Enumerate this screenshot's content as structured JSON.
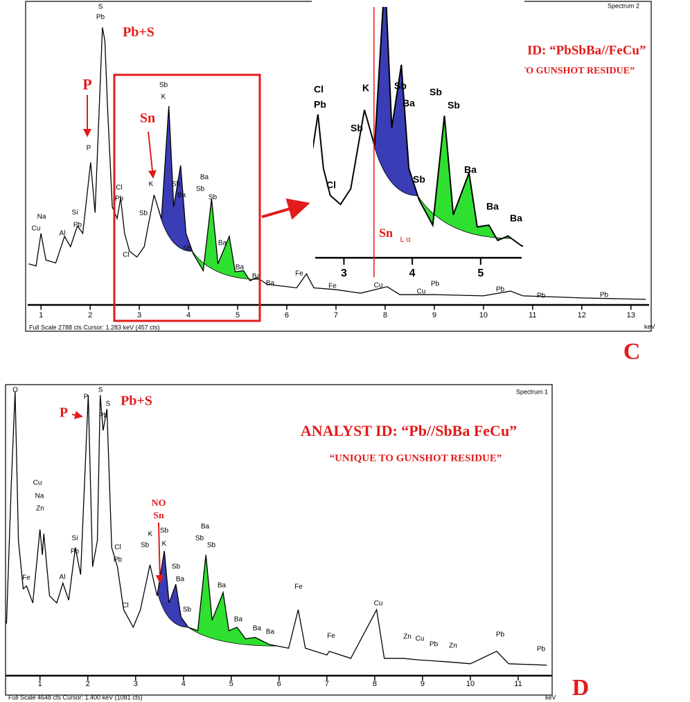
{
  "chart_data": [
    {
      "type": "line",
      "panel": "C",
      "spectrum_name": "Spectrum 2",
      "status_text": "Full Scale 2788 cts  Cursor: 1.283 keV (457 cts)",
      "x_unit": "keV",
      "x": [
        0.75,
        0.9,
        1.0,
        1.1,
        1.3,
        1.48,
        1.6,
        1.74,
        1.85,
        2.01,
        2.1,
        2.25,
        2.3,
        2.35,
        2.45,
        2.55,
        2.62,
        2.7,
        2.8,
        2.95,
        3.1,
        3.3,
        3.45,
        3.6,
        3.7,
        3.84,
        3.95,
        4.1,
        4.3,
        4.47,
        4.6,
        4.83,
        4.95,
        5.12,
        5.25,
        5.4,
        5.6,
        6.0,
        6.2,
        6.4,
        6.55,
        7.0,
        7.5,
        8.04,
        8.3,
        9.0,
        10.0,
        10.55,
        10.8,
        12.0,
        13.3
      ],
      "series": [
        {
          "color": "#000000",
          "values": [
            12.7,
            12,
            23,
            14,
            13,
            22,
            18.5,
            25.5,
            23,
            47,
            30,
            92.6,
            88,
            67,
            32,
            28,
            35,
            23,
            17,
            15,
            18.5,
            36,
            28,
            66,
            32,
            46,
            23,
            16,
            10.4,
            34.7,
            12.7,
            22,
            10,
            10.4,
            7,
            8,
            5.8,
            5,
            4.6,
            9.3,
            4.6,
            4,
            2.8,
            5,
            2.3,
            2.3,
            1.9,
            3.5,
            1.9,
            1.2,
            0.7
          ]
        }
      ],
      "xlim": [
        0.73,
        13.37
      ],
      "xticks": [
        1,
        2,
        3,
        4,
        5,
        6,
        7,
        8,
        9,
        10,
        11,
        12,
        13
      ],
      "ylim": [
        0,
        100
      ],
      "peak_labels": [
        "Na",
        "Cu",
        "Al",
        "Si",
        "Pb",
        "P",
        "S",
        "Pb",
        "Cl",
        "Pb",
        "K",
        "Sb",
        "Cl",
        "Sb",
        "K",
        "Sb",
        "Ba",
        "Sb",
        "Ba",
        "Sb",
        "Sb",
        "Ba",
        "Ba",
        "Ba",
        "Ba",
        "Fe",
        "Fe",
        "Cu",
        "Pb",
        "Cu",
        "Pb",
        "Pb",
        "Pb"
      ],
      "annotations": [
        "Pb+S",
        "P",
        "Sn",
        "ANALYST ID: “PbSbBa//FeCu”",
        "“UNIQUE TO GUNSHOT RESIDUE”"
      ],
      "inset": {
        "xlim": [
          2.58,
          5.6
        ],
        "xticks": [
          3,
          4,
          5
        ],
        "marker_x": 3.44,
        "sn_label": "Sn",
        "sn_subscript": "L α",
        "peak_labels": [
          "Cl",
          "Pb",
          "Cl",
          "Sb",
          "K",
          "Sb",
          "Ba",
          "Sb",
          "Sb",
          "Sb",
          "Ba",
          "Ba",
          "Ba"
        ]
      }
    },
    {
      "type": "line",
      "panel": "D",
      "spectrum_name": "Spectrum 1",
      "status_text": "Full Scale 4648 cts  Cursor: 1.400 keV (1081 cts)",
      "x_unit": "keV",
      "x": [
        0.3,
        0.4,
        0.48,
        0.55,
        0.65,
        0.72,
        0.85,
        1.0,
        1.05,
        1.08,
        1.2,
        1.35,
        1.48,
        1.6,
        1.74,
        1.85,
        2.01,
        2.1,
        2.2,
        2.26,
        2.32,
        2.4,
        2.5,
        2.62,
        2.75,
        2.95,
        3.1,
        3.3,
        3.45,
        3.6,
        3.7,
        3.84,
        3.95,
        4.1,
        4.3,
        4.47,
        4.6,
        4.83,
        4.95,
        5.12,
        5.3,
        5.5,
        5.8,
        6.2,
        6.4,
        6.55,
        7.0,
        7.05,
        7.5,
        8.04,
        8.2,
        8.6,
        8.9,
        9.5,
        10.0,
        10.55,
        10.8,
        11.6
      ],
      "series": [
        {
          "color": "#000000",
          "values": [
            16.7,
            66,
            98.8,
            46,
            29,
            30,
            24,
            50,
            41,
            48.5,
            26.5,
            24,
            31,
            25,
            43.6,
            34,
            97.5,
            36.8,
            46,
            97.5,
            85,
            92.6,
            43.6,
            36.8,
            21.6,
            15.4,
            21.6,
            37.5,
            26.5,
            42.4,
            24,
            30.6,
            19,
            15.4,
            14.2,
            41,
            17.9,
            27.7,
            14.2,
            15.4,
            11.3,
            11.8,
            9.3,
            8,
            21.6,
            8,
            5.6,
            6.9,
            4.4,
            21.6,
            4.4,
            4.4,
            3.9,
            3.2,
            2.5,
            6.9,
            2.5,
            2
          ]
        }
      ],
      "xlim": [
        0.28,
        11.71
      ],
      "xticks": [
        1,
        2,
        3,
        4,
        5,
        6,
        7,
        8,
        9,
        10,
        11
      ],
      "ylim": [
        0,
        100
      ],
      "peak_labels": [
        "O",
        "P",
        "S",
        "S",
        "Pb",
        "Cu",
        "Na",
        "Zn",
        "Fe",
        "Al",
        "Si",
        "Pb",
        "Cl",
        "Pb",
        "K",
        "Sb",
        "Cl",
        "Sb",
        "K",
        "Sb",
        "Ba",
        "Sb",
        "Ba",
        "Sb",
        "Sb",
        "Ba",
        "Ba",
        "Ba",
        "Ba",
        "Fe",
        "Fe",
        "Cu",
        "Zn",
        "Cu",
        "Pb",
        "Zn",
        "Pb",
        "Pb"
      ],
      "annotations": [
        "P",
        "Pb+S",
        "NO",
        "Sn",
        "ANALYST ID: “Pb//SbBa FeCu”",
        "“UNIQUE TO GUNSHOT RESIDUE”"
      ]
    }
  ]
}
